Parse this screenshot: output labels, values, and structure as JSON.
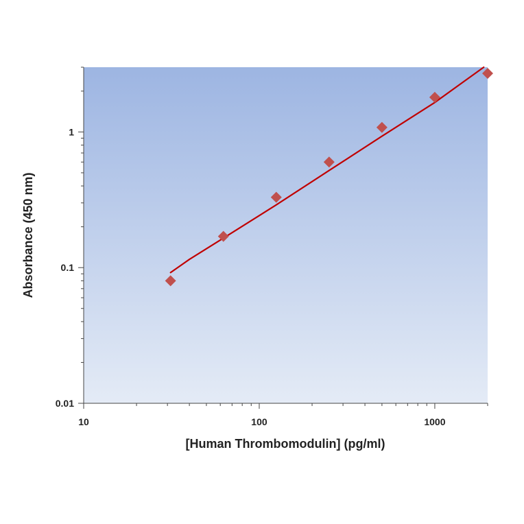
{
  "chart_data": {
    "type": "scatter",
    "title": "",
    "xlabel": "[Human Thrombomodulin] (pg/ml)",
    "ylabel": "Absorbance (450 nm)",
    "x_scale": "log",
    "y_scale": "log",
    "xlim": [
      10,
      2000
    ],
    "ylim": [
      0.01,
      3
    ],
    "x_ticks": [
      {
        "value": 10,
        "label": "10"
      },
      {
        "value": 100,
        "label": "100"
      },
      {
        "value": 1000,
        "label": "1000"
      }
    ],
    "y_ticks": [
      {
        "value": 0.01,
        "label": "0.01"
      },
      {
        "value": 0.1,
        "label": "0.1"
      },
      {
        "value": 1,
        "label": "1"
      }
    ],
    "grid": false,
    "legend": "none",
    "series": [
      {
        "marker": "diamond",
        "color": "#c0504d",
        "x": [
          31.25,
          62.5,
          125,
          250,
          500,
          1000,
          2000
        ],
        "y": [
          0.08,
          0.17,
          0.33,
          0.6,
          1.08,
          1.8,
          2.7
        ]
      }
    ],
    "fit_line": {
      "color": "#c00000",
      "x": [
        31.25,
        40,
        62.5,
        125,
        250,
        500,
        1000,
        1900
      ],
      "y": [
        0.092,
        0.115,
        0.165,
        0.29,
        0.52,
        0.93,
        1.65,
        3.0
      ]
    },
    "colors": {
      "plot_bg_top": "#9db5e2",
      "plot_bg_bottom": "#e4ebf6",
      "axis": "#444444"
    }
  }
}
